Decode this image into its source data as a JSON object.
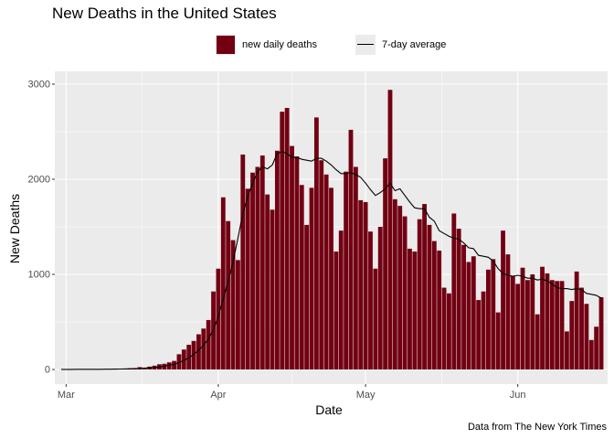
{
  "chart_data": {
    "type": "bar",
    "title": "New Deaths in the United States",
    "xlabel": "Date",
    "ylabel": "New Deaths",
    "caption": "Data from The New York Times",
    "legend": {
      "placement": "top",
      "bars_label": "new daily deaths",
      "line_label": "7-day average"
    },
    "colors": {
      "bar": "#720012",
      "line": "#000000",
      "panel": "#ebebeb",
      "grid": "#ffffff"
    },
    "grid": true,
    "ylim": [
      0,
      3000
    ],
    "y_ticks": [
      0,
      1000,
      2000,
      3000
    ],
    "x_ticks": [
      {
        "date": "2020-03-01",
        "label": "Mar"
      },
      {
        "date": "2020-04-01",
        "label": "Apr"
      },
      {
        "date": "2020-05-01",
        "label": "May"
      },
      {
        "date": "2020-06-01",
        "label": "Jun"
      }
    ],
    "dates": [
      "2020-02-29",
      "2020-03-01",
      "2020-03-02",
      "2020-03-03",
      "2020-03-04",
      "2020-03-05",
      "2020-03-06",
      "2020-03-07",
      "2020-03-08",
      "2020-03-09",
      "2020-03-10",
      "2020-03-11",
      "2020-03-12",
      "2020-03-13",
      "2020-03-14",
      "2020-03-15",
      "2020-03-16",
      "2020-03-17",
      "2020-03-18",
      "2020-03-19",
      "2020-03-20",
      "2020-03-21",
      "2020-03-22",
      "2020-03-23",
      "2020-03-24",
      "2020-03-25",
      "2020-03-26",
      "2020-03-27",
      "2020-03-28",
      "2020-03-29",
      "2020-03-30",
      "2020-03-31",
      "2020-04-01",
      "2020-04-02",
      "2020-04-03",
      "2020-04-04",
      "2020-04-05",
      "2020-04-06",
      "2020-04-07",
      "2020-04-08",
      "2020-04-09",
      "2020-04-10",
      "2020-04-11",
      "2020-04-12",
      "2020-04-13",
      "2020-04-14",
      "2020-04-15",
      "2020-04-16",
      "2020-04-17",
      "2020-04-18",
      "2020-04-19",
      "2020-04-20",
      "2020-04-21",
      "2020-04-22",
      "2020-04-23",
      "2020-04-24",
      "2020-04-25",
      "2020-04-26",
      "2020-04-27",
      "2020-04-28",
      "2020-04-29",
      "2020-04-30",
      "2020-05-01",
      "2020-05-02",
      "2020-05-03",
      "2020-05-04",
      "2020-05-05",
      "2020-05-06",
      "2020-05-07",
      "2020-05-08",
      "2020-05-09",
      "2020-05-10",
      "2020-05-11",
      "2020-05-12",
      "2020-05-13",
      "2020-05-14",
      "2020-05-15",
      "2020-05-16",
      "2020-05-17",
      "2020-05-18",
      "2020-05-19",
      "2020-05-20",
      "2020-05-21",
      "2020-05-22",
      "2020-05-23",
      "2020-05-24",
      "2020-05-25",
      "2020-05-26",
      "2020-05-27",
      "2020-05-28",
      "2020-05-29",
      "2020-05-30",
      "2020-05-31",
      "2020-06-01",
      "2020-06-02",
      "2020-06-03",
      "2020-06-04",
      "2020-06-05",
      "2020-06-06",
      "2020-06-07",
      "2020-06-08",
      "2020-06-09",
      "2020-06-10",
      "2020-06-11",
      "2020-06-12",
      "2020-06-13",
      "2020-06-14",
      "2020-06-15",
      "2020-06-16",
      "2020-06-17",
      "2020-06-18"
    ],
    "series": [
      {
        "name": "new daily deaths",
        "type": "bar",
        "values": [
          1,
          1,
          1,
          3,
          1,
          2,
          2,
          2,
          4,
          4,
          5,
          7,
          9,
          10,
          12,
          15,
          25,
          20,
          30,
          40,
          55,
          60,
          75,
          90,
          160,
          210,
          260,
          300,
          370,
          430,
          520,
          820,
          1060,
          1810,
          1560,
          1360,
          1150,
          2260,
          1900,
          2070,
          2130,
          2250,
          1840,
          1680,
          2300,
          2710,
          2750,
          2350,
          2240,
          1940,
          1520,
          1910,
          2650,
          2200,
          2050,
          1910,
          1240,
          1460,
          2080,
          2520,
          2130,
          1780,
          1760,
          1450,
          1060,
          1500,
          2220,
          2940,
          1790,
          1720,
          1610,
          1270,
          1240,
          1580,
          1740,
          1520,
          1350,
          1250,
          860,
          800,
          1640,
          1480,
          1310,
          1130,
          1190,
          730,
          820,
          1050,
          1160,
          600,
          1460,
          1210,
          980,
          900,
          1070,
          940,
          1000,
          580,
          1080,
          1010,
          940,
          930,
          930,
          400,
          720,
          1030,
          860,
          690,
          310,
          450,
          760
        ]
      },
      {
        "name": "7-day average",
        "type": "line",
        "values": [
          1,
          1,
          1,
          2,
          2,
          2,
          2,
          2,
          2,
          3,
          3,
          4,
          5,
          6,
          8,
          9,
          11,
          14,
          17,
          21,
          27,
          35,
          45,
          56,
          73,
          95,
          124,
          160,
          202,
          256,
          320,
          420,
          560,
          740,
          930,
          1130,
          1380,
          1640,
          1820,
          1960,
          2080,
          2130,
          2110,
          2150,
          2270,
          2290,
          2270,
          2230,
          2230,
          2210,
          2200,
          2190,
          2220,
          2220,
          2190,
          2150,
          2100,
          2060,
          2060,
          2070,
          2050,
          2020,
          1960,
          1890,
          1830,
          1860,
          1900,
          1960,
          1880,
          1900,
          1830,
          1760,
          1700,
          1690,
          1690,
          1600,
          1560,
          1460,
          1430,
          1400,
          1380,
          1370,
          1330,
          1280,
          1270,
          1200,
          1190,
          1180,
          1140,
          1060,
          1010,
          990,
          980,
          990,
          980,
          960,
          960,
          940,
          950,
          930,
          900,
          860,
          850,
          850,
          840,
          850,
          840,
          800,
          790,
          780,
          750
        ]
      }
    ]
  }
}
